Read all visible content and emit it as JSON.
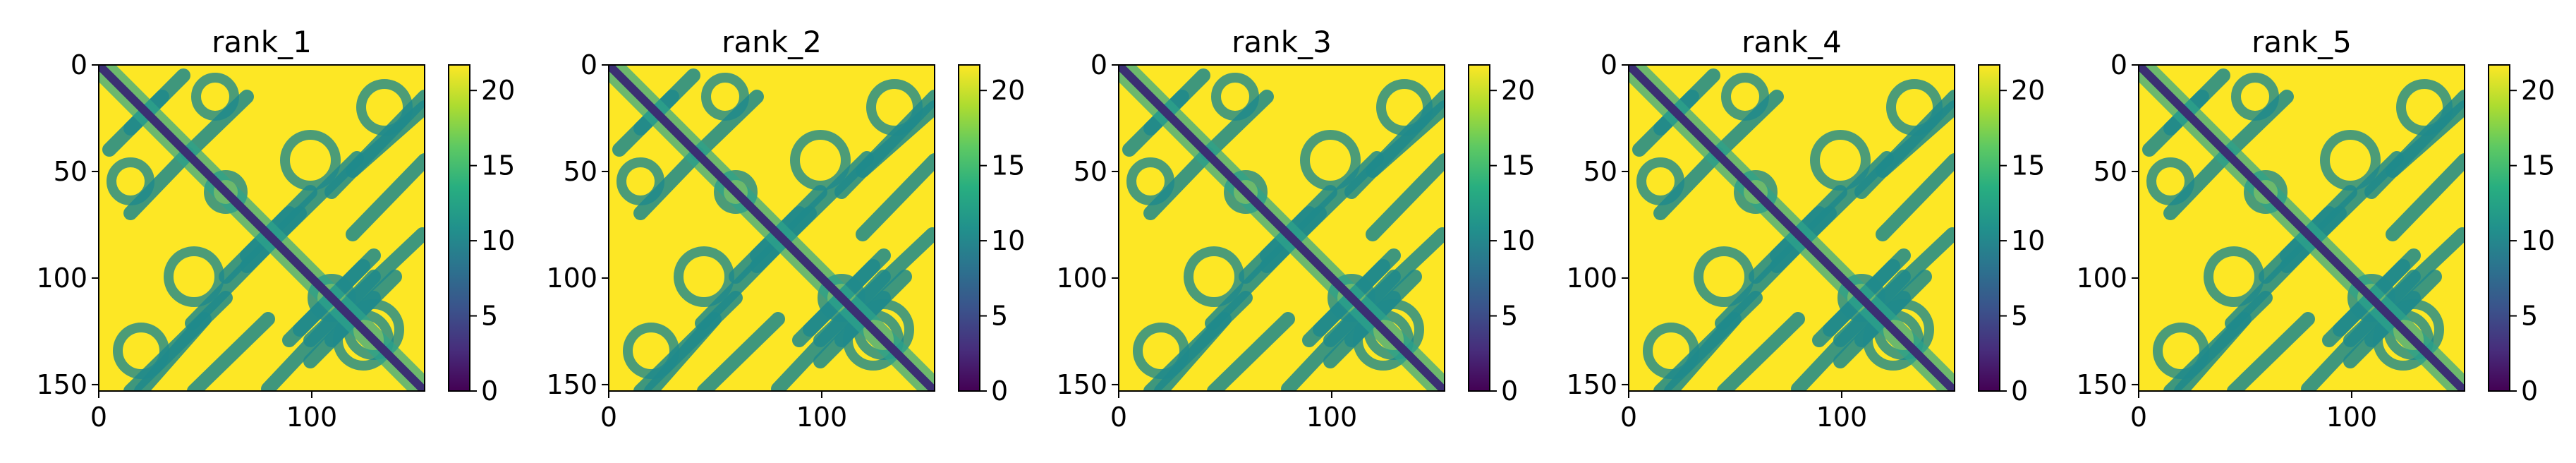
{
  "figure": {
    "background": "#ffffff"
  },
  "chart_data": [
    {
      "type": "heatmap",
      "title": "rank_1",
      "n": 154,
      "xlim": [
        0,
        153
      ],
      "ylim": [
        153,
        0
      ],
      "xticks": [
        0,
        100
      ],
      "yticks": [
        0,
        50,
        100,
        150
      ],
      "colorbar": {
        "min": 0,
        "max": 21.7,
        "ticks": [
          0,
          5,
          10,
          15,
          20
        ]
      },
      "colormap": "viridis",
      "diagonal_color": "#3b2f73",
      "contact_color": "#1f8a8c",
      "background_color": "#fde725"
    },
    {
      "type": "heatmap",
      "title": "rank_2",
      "n": 154,
      "xlim": [
        0,
        153
      ],
      "ylim": [
        153,
        0
      ],
      "xticks": [
        0,
        100
      ],
      "yticks": [
        0,
        50,
        100,
        150
      ],
      "colorbar": {
        "min": 0,
        "max": 21.7,
        "ticks": [
          0,
          5,
          10,
          15,
          20
        ]
      },
      "colormap": "viridis",
      "diagonal_color": "#3b2f73",
      "contact_color": "#1f8a8c",
      "background_color": "#fde725"
    },
    {
      "type": "heatmap",
      "title": "rank_3",
      "n": 154,
      "xlim": [
        0,
        153
      ],
      "ylim": [
        153,
        0
      ],
      "xticks": [
        0,
        100
      ],
      "yticks": [
        0,
        50,
        100,
        150
      ],
      "colorbar": {
        "min": 0,
        "max": 21.7,
        "ticks": [
          0,
          5,
          10,
          15,
          20
        ]
      },
      "colormap": "viridis",
      "diagonal_color": "#3b2f73",
      "contact_color": "#1f8a8c",
      "background_color": "#fde725"
    },
    {
      "type": "heatmap",
      "title": "rank_4",
      "n": 154,
      "xlim": [
        0,
        153
      ],
      "ylim": [
        153,
        0
      ],
      "xticks": [
        0,
        100
      ],
      "yticks": [
        0,
        50,
        100,
        150
      ],
      "colorbar": {
        "min": 0,
        "max": 21.7,
        "ticks": [
          0,
          5,
          10,
          15,
          20
        ]
      },
      "colormap": "viridis",
      "diagonal_color": "#3b2f73",
      "contact_color": "#1f8a8c",
      "background_color": "#fde725"
    },
    {
      "type": "heatmap",
      "title": "rank_5",
      "n": 154,
      "xlim": [
        0,
        153
      ],
      "ylim": [
        153,
        0
      ],
      "xticks": [
        0,
        100
      ],
      "yticks": [
        0,
        50,
        100,
        150
      ],
      "colorbar": {
        "min": 0,
        "max": 21.7,
        "ticks": [
          0,
          5,
          10,
          15,
          20
        ]
      },
      "colormap": "viridis",
      "diagonal_color": "#3b2f73",
      "contact_color": "#1f8a8c",
      "background_color": "#fde725"
    }
  ]
}
